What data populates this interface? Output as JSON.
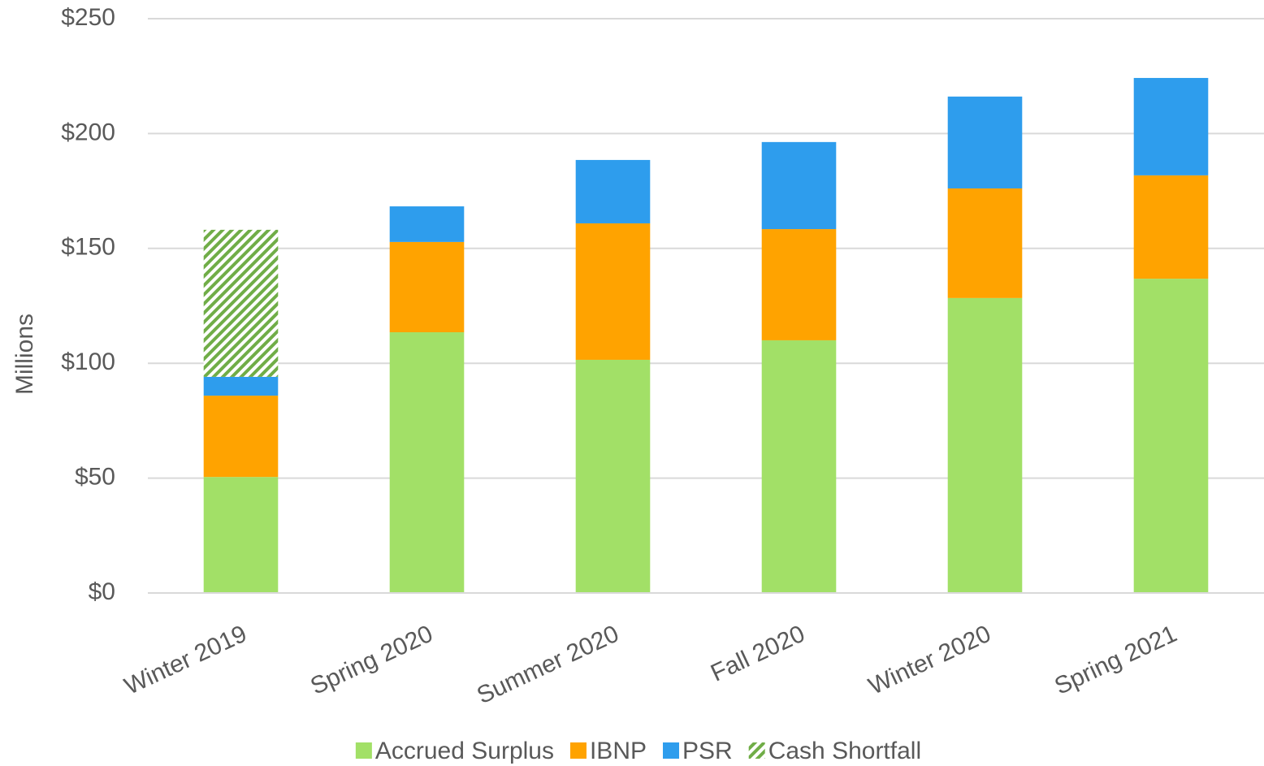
{
  "chart_data": {
    "type": "stacked_bar",
    "categories": [
      "Winter 2019",
      "Spring 2020",
      "Summer 2020",
      "Fall 2020",
      "Winter 2020",
      "Spring 2021"
    ],
    "series": [
      {
        "name": "Accrued Surplus",
        "color": "#a2e067",
        "values": [
          50.5,
          113.5,
          101.5,
          110,
          128.4,
          136.8
        ]
      },
      {
        "name": "IBNP",
        "color": "#ffa300",
        "values": [
          35.4,
          39.3,
          59.4,
          48.4,
          47.7,
          45
        ]
      },
      {
        "name": "PSR",
        "color": "#2e9ded",
        "values": [
          8.2,
          15.5,
          27.6,
          37.9,
          40,
          42.4
        ]
      },
      {
        "name": "Cash Shortfall",
        "color": "#70ad47",
        "pattern": "hatch",
        "values": [
          64,
          null,
          null,
          null,
          null,
          null
        ]
      }
    ],
    "y_label": "Millions",
    "ylim": [
      0,
      250
    ],
    "yticks": [
      {
        "value": 0,
        "label": "$0"
      },
      {
        "value": 50,
        "label": "$50"
      },
      {
        "value": 100,
        "label": "$100"
      },
      {
        "value": 150,
        "label": "$150"
      },
      {
        "value": 200,
        "label": "$200"
      },
      {
        "value": 250,
        "label": "$250"
      }
    ],
    "grid": true,
    "legend": "bottom"
  }
}
